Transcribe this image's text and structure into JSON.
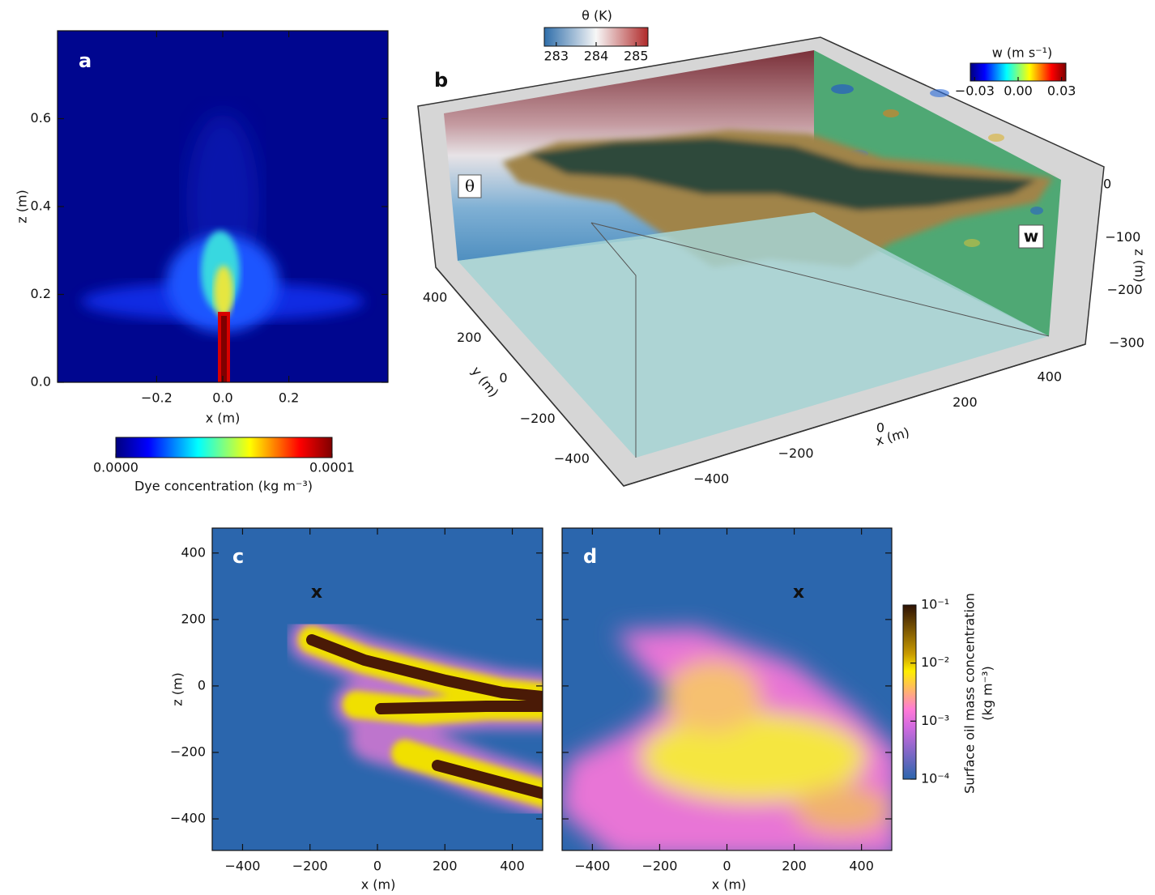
{
  "panel_a": {
    "label": "a",
    "xlabel": "x (m)",
    "ylabel": "z (m)",
    "xlim": [
      -0.5,
      0.5
    ],
    "ylim": [
      0,
      0.8
    ],
    "xticks": [
      {
        "value": -0.2,
        "label": "−0.2"
      },
      {
        "value": 0,
        "label": "0.0"
      },
      {
        "value": 0.2,
        "label": "0.2"
      }
    ],
    "yticks": [
      {
        "value": 0,
        "label": "0.0"
      },
      0.2,
      0.4,
      0.6
    ],
    "colorbar": {
      "title": "Dye concentration (kg m⁻³)",
      "lim": [
        0,
        0.0001
      ],
      "ticks": [
        {
          "value": 0,
          "label": "0.0000"
        },
        0.0001
      ]
    }
  },
  "panel_b": {
    "label": "b",
    "theta_label": "θ",
    "w_label": "w",
    "xlabel": "x (m)",
    "ylabel": "y (m)",
    "zlabel": "z (m)",
    "xlim": [
      -500,
      500
    ],
    "ylim": [
      -500,
      500
    ],
    "zlim": [
      -300,
      0
    ],
    "xticks": [
      {
        "value": -400,
        "label": "−400"
      },
      {
        "value": -200,
        "label": "−200"
      },
      0,
      200,
      400
    ],
    "yticks": [
      {
        "value": -400,
        "label": "−400"
      },
      {
        "value": -200,
        "label": "−200"
      },
      0,
      200,
      400
    ],
    "zticks": [
      0,
      {
        "value": -100,
        "label": "−100"
      },
      {
        "value": -200,
        "label": "−200"
      },
      {
        "value": -300,
        "label": "−300"
      }
    ],
    "colorbar_theta": {
      "title": "θ (K)",
      "lim": [
        282.7,
        285.3
      ],
      "ticks": [
        283,
        284,
        285
      ]
    },
    "colorbar_w": {
      "title": "w (m s⁻¹)",
      "lim": [
        -0.033,
        0.033
      ],
      "ticks": [
        {
          "value": -0.03,
          "label": "−0.03"
        },
        {
          "value": 0,
          "label": "0.00"
        },
        0.03
      ]
    }
  },
  "panel_c": {
    "label": "c",
    "marker": "x",
    "xlabel": "x (m)",
    "ylabel": "z (m)",
    "xlim": [
      -490,
      490
    ],
    "ylim": [
      -495,
      475
    ],
    "xticks": [
      {
        "value": -400,
        "label": "−400"
      },
      {
        "value": -200,
        "label": "−200"
      },
      0,
      200,
      400
    ],
    "yticks": [
      {
        "value": -400,
        "label": "−400"
      },
      {
        "value": -200,
        "label": "−200"
      },
      0,
      200,
      400
    ]
  },
  "panel_d": {
    "label": "d",
    "marker": "x",
    "xlabel": "x (m)",
    "xlim": [
      -490,
      490
    ],
    "ylim": [
      -495,
      475
    ],
    "xticks": [
      {
        "value": -400,
        "label": "−400"
      },
      {
        "value": -200,
        "label": "−200"
      },
      0,
      200,
      400
    ]
  },
  "colorbar_oil": {
    "title": "Surface oil mass concentration",
    "units": "(kg m⁻³)",
    "scale": "log",
    "lim": [
      0.0001,
      0.1
    ],
    "ticks": [
      {
        "value": 0.1,
        "label": "10⁻¹"
      },
      {
        "value": 0.01,
        "label": "10⁻²"
      },
      {
        "value": 0.001,
        "label": "10⁻³"
      },
      {
        "value": 0.0001,
        "label": "10⁻⁴"
      }
    ]
  }
}
